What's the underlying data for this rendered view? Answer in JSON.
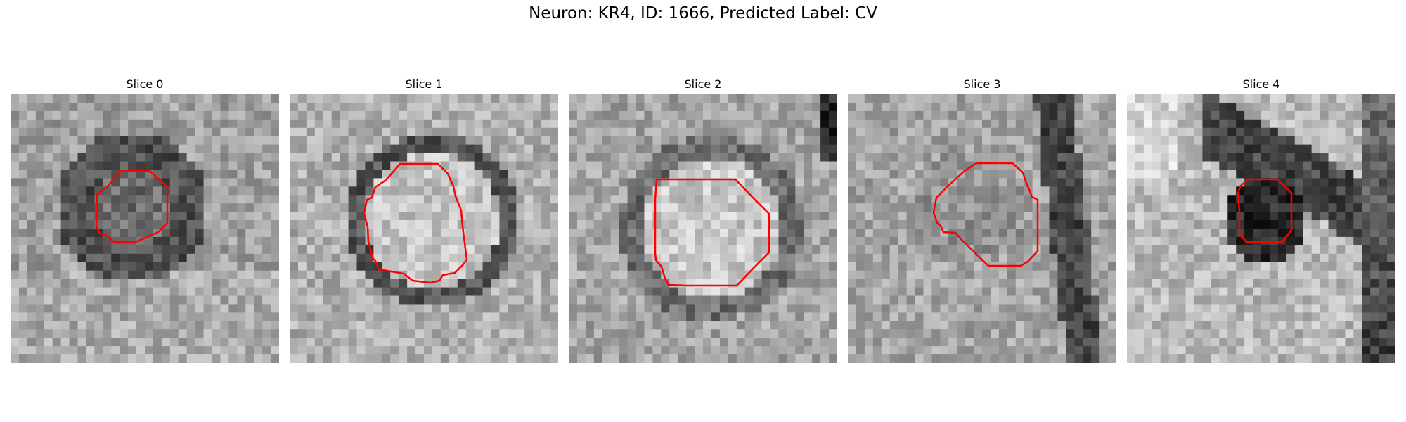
{
  "title": "Neuron: KR4, ID: 1666, Predicted Label: CV",
  "slices": [
    {
      "label": "Slice 0",
      "roi_color": "#ff0000",
      "image_description": "grayscale noisy microscopy patch with dark ring around center"
    },
    {
      "label": "Slice 1",
      "roi_color": "#ff0000",
      "image_description": "grayscale patch with bright round cell body and dark rim"
    },
    {
      "label": "Slice 2",
      "roi_color": "#ff0000",
      "image_description": "grayscale patch with large bright round body"
    },
    {
      "label": "Slice 3",
      "roi_color": "#ff0000",
      "image_description": "grayscale noisy patch with dark streak at right"
    },
    {
      "label": "Slice 4",
      "roi_color": "#ff0000",
      "image_description": "grayscale patch with dark diagonal band"
    }
  ]
}
